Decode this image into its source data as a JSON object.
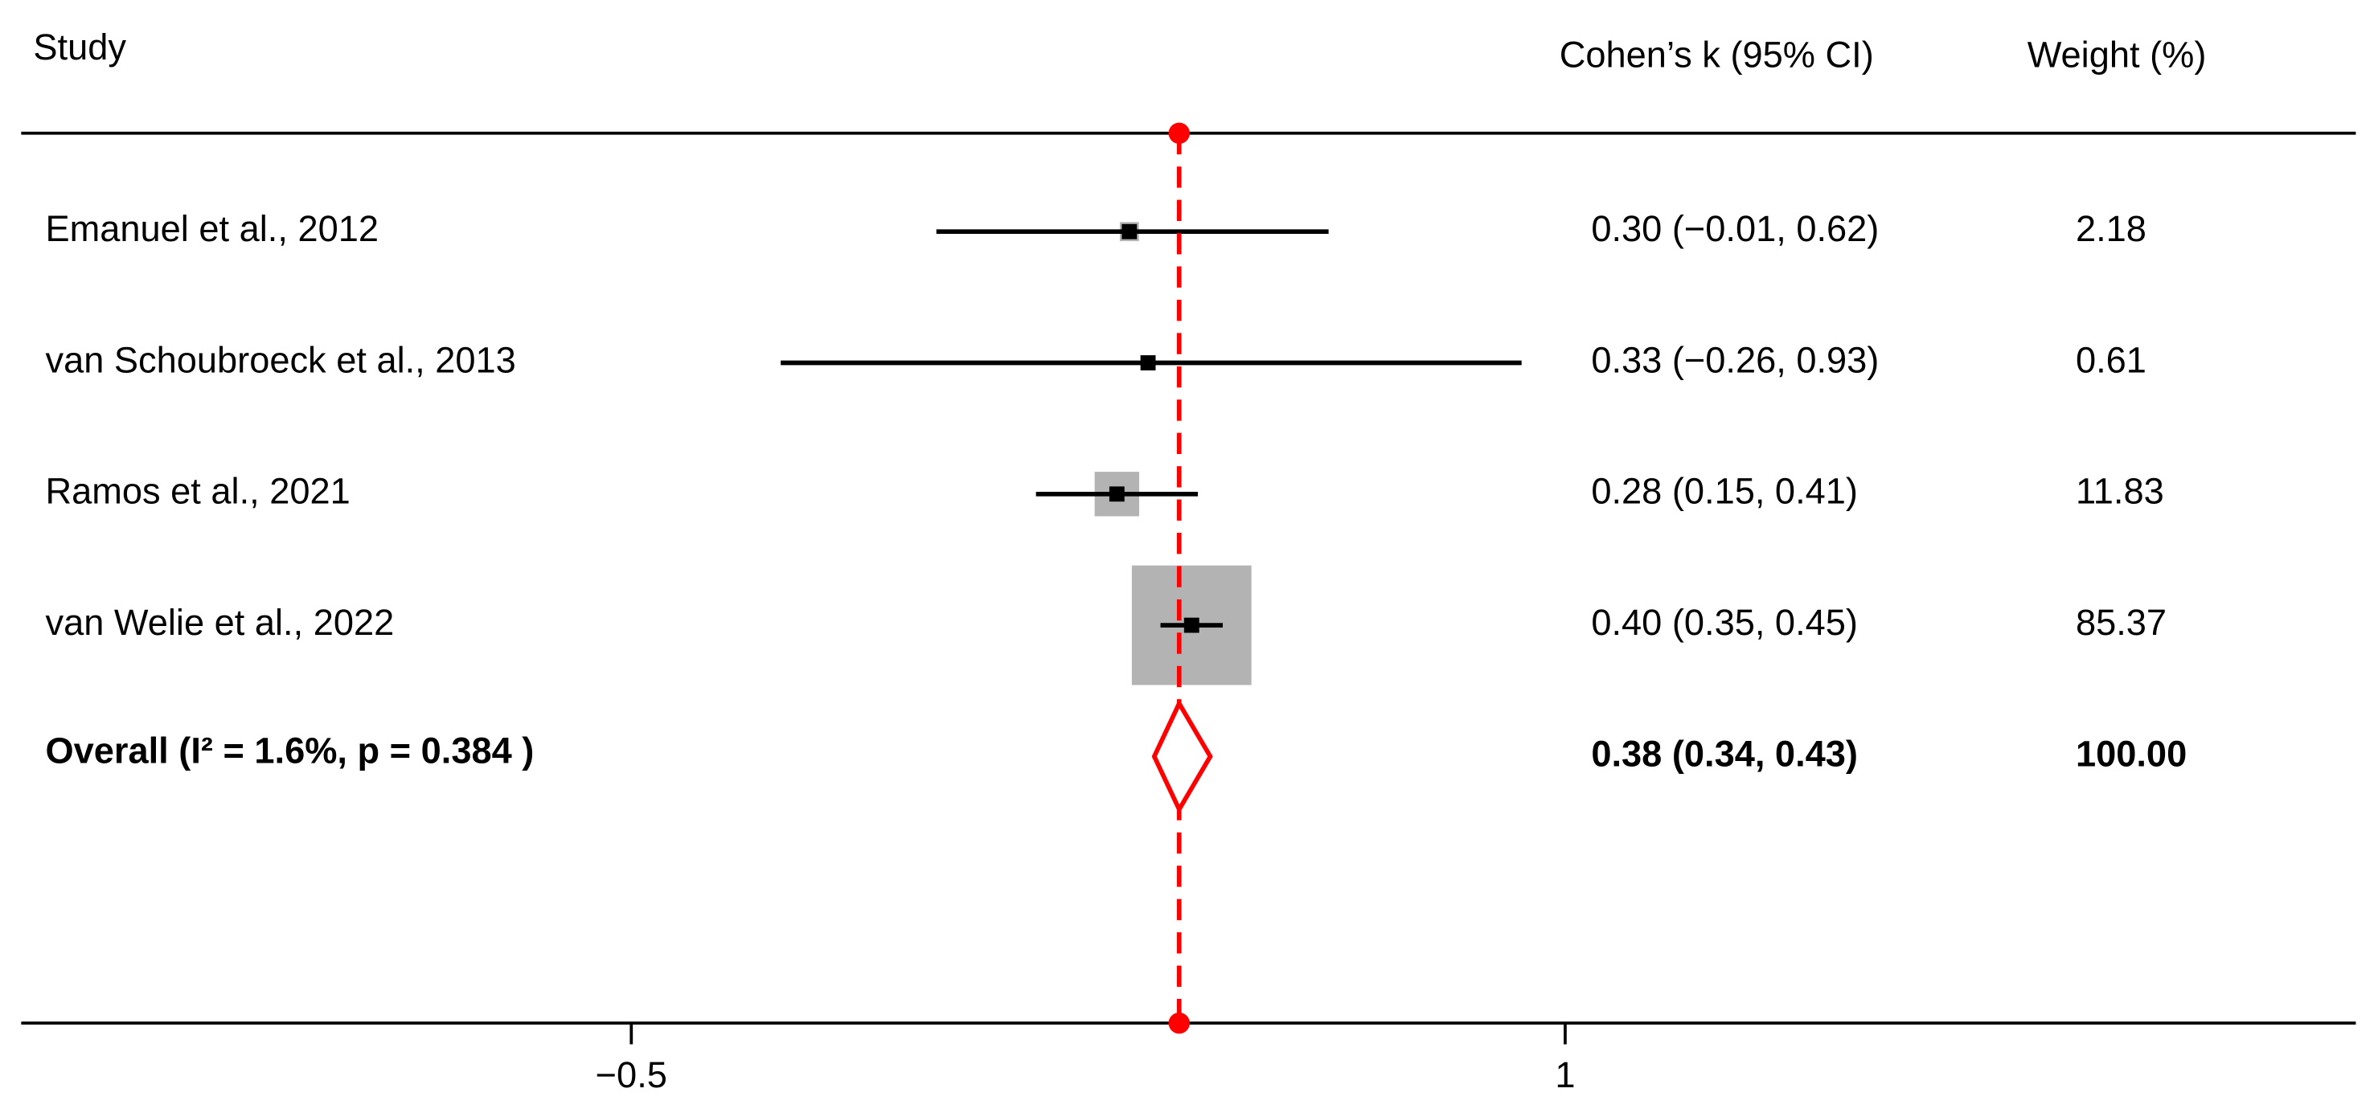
{
  "chart_data": {
    "type": "forest",
    "headers": {
      "study": "Study",
      "effect": "Cohen’s k  (95% CI)",
      "weight": "Weight (%)"
    },
    "categories": [
      "Emanuel et al., 2012",
      "van Schoubroeck et al., 2013",
      "Ramos et al., 2021",
      "van Welie et al., 2022"
    ],
    "values": [
      0.3,
      0.33,
      0.28,
      0.4
    ],
    "lower": [
      -0.01,
      -0.26,
      0.15,
      0.35
    ],
    "upper": [
      0.62,
      0.93,
      0.41,
      0.45
    ],
    "value_labels": [
      "0.30 (−0.01, 0.62)",
      "0.33 (−0.26, 0.93)",
      "0.28 (0.15, 0.41)",
      "0.40 (0.35, 0.45)"
    ],
    "weights": [
      2.18,
      0.61,
      11.83,
      85.37
    ],
    "overall": {
      "label": "Overall  (I² = 1.6%, p = 0.384 )",
      "value": 0.38,
      "lower": 0.34,
      "upper": 0.43,
      "value_label": "0.38 (0.34, 0.43)",
      "weight": {
        "value": 100,
        "label": "100.00"
      }
    },
    "xlim": [
      -1.48,
      2.27
    ],
    "xticks": [
      {
        "value": -0.5,
        "label": "−0.5"
      },
      1
    ],
    "box_color": "#b3b3b3",
    "reference_color": "#ff0000"
  }
}
